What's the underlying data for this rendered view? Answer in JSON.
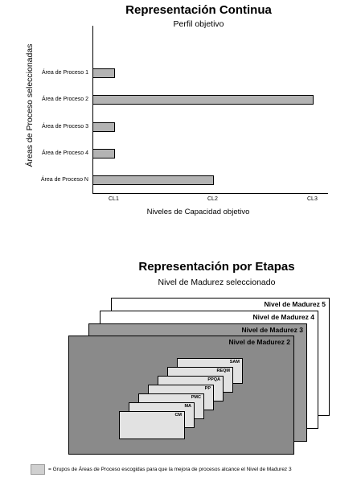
{
  "continuous": {
    "title": "Representación Continua",
    "subtitle": "Perfil objetivo",
    "y_axis_label": "Áreas de Proceso seleccionadas",
    "x_axis_label": "Niveles de Capacidad objetivo"
  },
  "chart_data": {
    "type": "bar",
    "orientation": "horizontal",
    "categories": [
      "Área de Proceso 1",
      "Área de Proceso 2",
      "Área de Proceso 3",
      "Área de Proceso 4",
      "Área de Proceso N"
    ],
    "values": [
      1,
      3,
      1,
      1,
      2
    ],
    "x_ticks": [
      "CL1",
      "CL2",
      "CL3"
    ],
    "xlim": [
      0,
      3
    ],
    "title": "Representación Continua",
    "subtitle": "Perfil objetivo",
    "xlabel": "Niveles de Capacidad objetivo",
    "ylabel": "Áreas de Proceso seleccionadas",
    "grid": false
  },
  "staged": {
    "title": "Representación por Etapas",
    "subtitle": "Nivel de Madurez seleccionado",
    "levels": [
      {
        "label": "Nivel de Madurez 5",
        "fill": "#ffffff"
      },
      {
        "label": "Nivel de Madurez 4",
        "fill": "#ffffff"
      },
      {
        "label": "Nivel de Madurez 3",
        "fill": "#9a9a9a"
      },
      {
        "label": "Nivel de Madurez 2",
        "fill": "#8a8a8a"
      }
    ],
    "process_areas": [
      "SAM",
      "REQM",
      "PPQA",
      "PP",
      "PMC",
      "MA",
      "CM"
    ],
    "process_area_fill": "#e2e2e2",
    "legend": "= Grupos de Áreas de Proceso escogidas para que la mejora de procesos alcance el Nivel de Madurez 3"
  }
}
